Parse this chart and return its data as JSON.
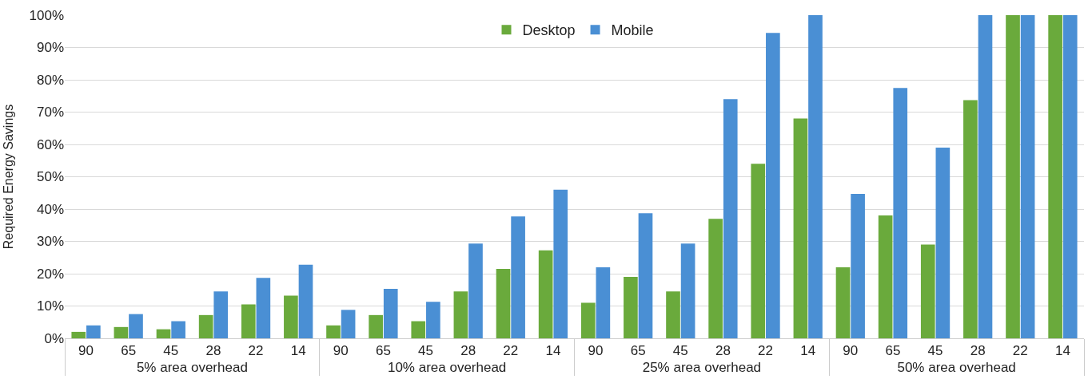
{
  "chart_data": {
    "type": "bar",
    "ylabel": "Required Energy Savings",
    "categories": [
      "90",
      "65",
      "45",
      "28",
      "22",
      "14",
      "90",
      "65",
      "45",
      "28",
      "22",
      "14",
      "90",
      "65",
      "45",
      "28",
      "22",
      "14",
      "90",
      "65",
      "45",
      "28",
      "22",
      "14"
    ],
    "annotations": [
      "5% area overhead",
      "10% area overhead",
      "25% area overhead",
      "50% area overhead"
    ],
    "series": [
      {
        "name": "Desktop",
        "color": "#6aaa3c",
        "values": [
          2,
          3.5,
          2.8,
          7.2,
          10.5,
          13.2,
          4,
          7.2,
          5.3,
          14.5,
          21.5,
          27.2,
          11,
          19,
          14.5,
          37,
          54,
          68,
          22,
          38,
          29,
          73.7,
          100,
          100
        ]
      },
      {
        "name": "Mobile",
        "color": "#4a8fd4",
        "values": [
          4,
          7.5,
          5.3,
          14.5,
          18.7,
          22.8,
          8.8,
          15.3,
          11.3,
          29.3,
          37.7,
          46,
          22,
          38.7,
          29.3,
          74,
          94.5,
          100,
          44.7,
          77.5,
          59,
          100,
          100,
          100
        ]
      }
    ],
    "ylim": [
      0,
      100
    ],
    "yticks": [
      {
        "value": 0,
        "label": "0%"
      },
      {
        "value": 10,
        "label": "10%"
      },
      {
        "value": 20,
        "label": "20%"
      },
      {
        "value": 30,
        "label": "30%"
      },
      {
        "value": 40,
        "label": "40%"
      },
      {
        "value": 50,
        "label": "50%"
      },
      {
        "value": 60,
        "label": "60%"
      },
      {
        "value": 70,
        "label": "70%"
      },
      {
        "value": 80,
        "label": "80%"
      },
      {
        "value": 90,
        "label": "90%"
      },
      {
        "value": 100,
        "label": "100%"
      }
    ],
    "grid": "y",
    "legend": "top"
  }
}
